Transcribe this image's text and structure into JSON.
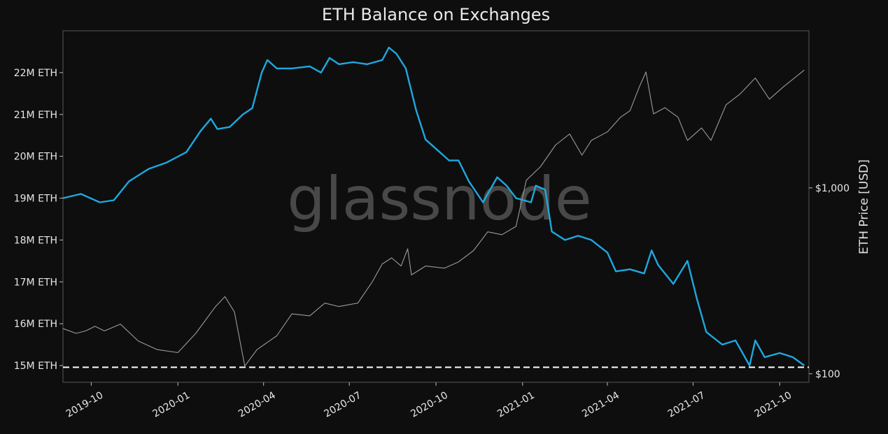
{
  "chart_data": {
    "type": "line",
    "title": "ETH Balance on Exchanges",
    "watermark": "glassnode",
    "ylabel_right": "ETH Price [USD]",
    "grid": false,
    "x_ticks": [
      "2019-10",
      "2020-01",
      "2020-04",
      "2020-07",
      "2020-10",
      "2021-01",
      "2021-04",
      "2021-07",
      "2021-10"
    ],
    "x_range": [
      "2019-09-01",
      "2021-11-01"
    ],
    "y_left_ticks": [
      {
        "value": 15,
        "label": "15M ETH"
      },
      {
        "value": 16,
        "label": "16M ETH"
      },
      {
        "value": 17,
        "label": "17M ETH"
      },
      {
        "value": 18,
        "label": "18M ETH"
      },
      {
        "value": 19,
        "label": "19M ETH"
      },
      {
        "value": 20,
        "label": "20M ETH"
      },
      {
        "value": 21,
        "label": "21M ETH"
      },
      {
        "value": 22,
        "label": "22M ETH"
      }
    ],
    "y_left_range": [
      14.6,
      23.0
    ],
    "y_right_scale": "log",
    "y_right_ticks": [
      {
        "value": 100,
        "label": "$100"
      },
      {
        "value": 1000,
        "label": "$1,000"
      }
    ],
    "y_right_range": [
      90,
      7000
    ],
    "reference_line": {
      "axis": "left",
      "value": 14.96,
      "style": "dashed",
      "color": "#ffffff"
    },
    "series": [
      {
        "key": "balance",
        "axis": "left",
        "color": "#1ea8e0",
        "points": [
          [
            "2019-09-01",
            19.0
          ],
          [
            "2019-09-20",
            19.1
          ],
          [
            "2019-10-10",
            18.9
          ],
          [
            "2019-10-25",
            18.95
          ],
          [
            "2019-11-10",
            19.4
          ],
          [
            "2019-12-01",
            19.7
          ],
          [
            "2019-12-20",
            19.85
          ],
          [
            "2020-01-10",
            20.1
          ],
          [
            "2020-01-25",
            20.6
          ],
          [
            "2020-02-05",
            20.9
          ],
          [
            "2020-02-12",
            20.65
          ],
          [
            "2020-02-25",
            20.7
          ],
          [
            "2020-03-10",
            21.0
          ],
          [
            "2020-03-20",
            21.15
          ],
          [
            "2020-03-30",
            22.0
          ],
          [
            "2020-04-05",
            22.3
          ],
          [
            "2020-04-15",
            22.1
          ],
          [
            "2020-05-01",
            22.1
          ],
          [
            "2020-05-20",
            22.15
          ],
          [
            "2020-06-01",
            22.0
          ],
          [
            "2020-06-10",
            22.35
          ],
          [
            "2020-06-20",
            22.2
          ],
          [
            "2020-07-05",
            22.25
          ],
          [
            "2020-07-20",
            22.2
          ],
          [
            "2020-08-05",
            22.3
          ],
          [
            "2020-08-12",
            22.6
          ],
          [
            "2020-08-20",
            22.45
          ],
          [
            "2020-08-30",
            22.1
          ],
          [
            "2020-09-10",
            21.1
          ],
          [
            "2020-09-20",
            20.4
          ],
          [
            "2020-10-05",
            20.1
          ],
          [
            "2020-10-15",
            19.9
          ],
          [
            "2020-10-25",
            19.9
          ],
          [
            "2020-11-05",
            19.4
          ],
          [
            "2020-11-20",
            18.9
          ],
          [
            "2020-12-05",
            19.5
          ],
          [
            "2020-12-15",
            19.3
          ],
          [
            "2020-12-25",
            19.0
          ],
          [
            "2021-01-10",
            18.9
          ],
          [
            "2021-01-15",
            19.3
          ],
          [
            "2021-01-25",
            19.2
          ],
          [
            "2021-02-01",
            18.2
          ],
          [
            "2021-02-15",
            18.0
          ],
          [
            "2021-03-01",
            18.1
          ],
          [
            "2021-03-15",
            18.0
          ],
          [
            "2021-04-01",
            17.7
          ],
          [
            "2021-04-10",
            17.25
          ],
          [
            "2021-04-25",
            17.3
          ],
          [
            "2021-05-10",
            17.2
          ],
          [
            "2021-05-18",
            17.75
          ],
          [
            "2021-05-25",
            17.4
          ],
          [
            "2021-06-10",
            16.95
          ],
          [
            "2021-06-25",
            17.5
          ],
          [
            "2021-07-05",
            16.6
          ],
          [
            "2021-07-15",
            15.8
          ],
          [
            "2021-08-01",
            15.5
          ],
          [
            "2021-08-15",
            15.6
          ],
          [
            "2021-08-30",
            15.0
          ],
          [
            "2021-09-05",
            15.6
          ],
          [
            "2021-09-15",
            15.2
          ],
          [
            "2021-10-01",
            15.3
          ],
          [
            "2021-10-15",
            15.2
          ],
          [
            "2021-10-27",
            15.0
          ]
        ]
      },
      {
        "key": "price",
        "axis": "right",
        "color": "#9a9a9a",
        "points": [
          [
            "2019-09-01",
            175
          ],
          [
            "2019-09-15",
            165
          ],
          [
            "2019-09-25",
            170
          ],
          [
            "2019-10-05",
            180
          ],
          [
            "2019-10-15",
            170
          ],
          [
            "2019-11-01",
            185
          ],
          [
            "2019-11-20",
            150
          ],
          [
            "2019-12-10",
            135
          ],
          [
            "2020-01-01",
            130
          ],
          [
            "2020-01-20",
            165
          ],
          [
            "2020-02-10",
            230
          ],
          [
            "2020-02-20",
            260
          ],
          [
            "2020-03-01",
            215
          ],
          [
            "2020-03-12",
            110
          ],
          [
            "2020-03-25",
            135
          ],
          [
            "2020-04-15",
            160
          ],
          [
            "2020-05-01",
            210
          ],
          [
            "2020-05-20",
            205
          ],
          [
            "2020-06-05",
            240
          ],
          [
            "2020-06-20",
            230
          ],
          [
            "2020-07-10",
            240
          ],
          [
            "2020-07-25",
            310
          ],
          [
            "2020-08-05",
            390
          ],
          [
            "2020-08-15",
            420
          ],
          [
            "2020-08-25",
            380
          ],
          [
            "2020-09-01",
            470
          ],
          [
            "2020-09-05",
            340
          ],
          [
            "2020-09-20",
            380
          ],
          [
            "2020-10-10",
            370
          ],
          [
            "2020-10-25",
            400
          ],
          [
            "2020-11-10",
            460
          ],
          [
            "2020-11-25",
            580
          ],
          [
            "2020-12-10",
            560
          ],
          [
            "2020-12-25",
            620
          ],
          [
            "2021-01-05",
            1100
          ],
          [
            "2021-01-20",
            1300
          ],
          [
            "2021-02-05",
            1700
          ],
          [
            "2021-02-20",
            1950
          ],
          [
            "2021-03-05",
            1500
          ],
          [
            "2021-03-15",
            1800
          ],
          [
            "2021-04-01",
            2000
          ],
          [
            "2021-04-15",
            2400
          ],
          [
            "2021-04-25",
            2600
          ],
          [
            "2021-05-05",
            3500
          ],
          [
            "2021-05-12",
            4200
          ],
          [
            "2021-05-20",
            2500
          ],
          [
            "2021-06-01",
            2700
          ],
          [
            "2021-06-15",
            2400
          ],
          [
            "2021-06-25",
            1800
          ],
          [
            "2021-07-10",
            2100
          ],
          [
            "2021-07-20",
            1800
          ],
          [
            "2021-08-05",
            2800
          ],
          [
            "2021-08-20",
            3200
          ],
          [
            "2021-09-05",
            3900
          ],
          [
            "2021-09-20",
            3000
          ],
          [
            "2021-10-05",
            3500
          ],
          [
            "2021-10-27",
            4300
          ]
        ]
      }
    ]
  }
}
